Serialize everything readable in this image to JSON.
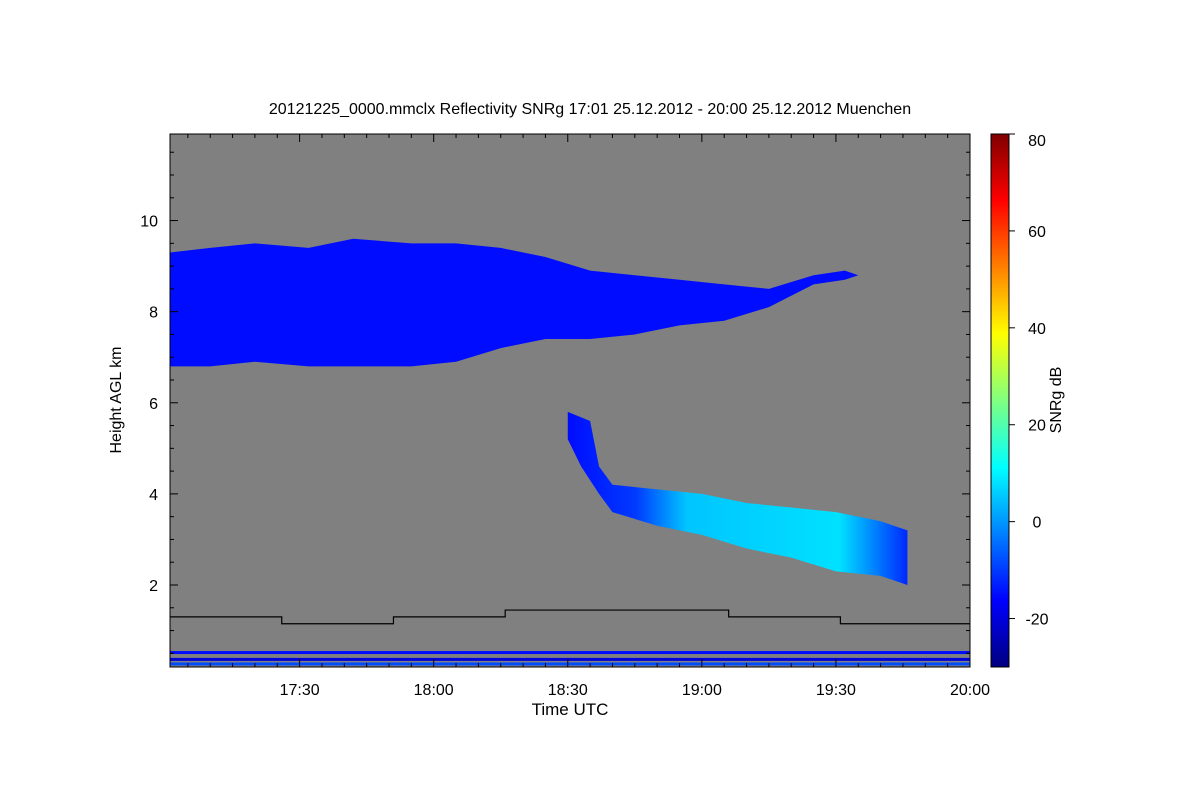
{
  "chart_data": {
    "type": "heatmap",
    "title": "20121225_0000.mmclx Reflectivity SNRg   17:01 25.12.2012 - 20:00 25.12.2012 Muenchen",
    "xlabel": "Time UTC",
    "ylabel": "Height AGL km",
    "colorbar_label": "SNRg dB",
    "x_unit": "minutes of day (UTC)",
    "xlim": [
      1021,
      1200
    ],
    "ylim": [
      0.2,
      11.9
    ],
    "x_ticks": [
      {
        "value": 1050,
        "label": "17:30"
      },
      {
        "value": 1080,
        "label": "18:00"
      },
      {
        "value": 1110,
        "label": "18:30"
      },
      {
        "value": 1140,
        "label": "19:00"
      },
      {
        "value": 1170,
        "label": "19:30"
      },
      {
        "value": 1200,
        "label": "20:00"
      }
    ],
    "y_ticks": [
      {
        "value": 2,
        "label": "2"
      },
      {
        "value": 4,
        "label": "4"
      },
      {
        "value": 6,
        "label": "6"
      },
      {
        "value": 8,
        "label": "8"
      },
      {
        "value": 10,
        "label": "10"
      }
    ],
    "colorbar_range": [
      -30,
      80
    ],
    "colorbar_ticks": [
      {
        "value": -20,
        "label": "-20"
      },
      {
        "value": 0,
        "label": "0"
      },
      {
        "value": 20,
        "label": "20"
      },
      {
        "value": 40,
        "label": "40"
      },
      {
        "value": 60,
        "label": "60"
      },
      {
        "value": 80,
        "label": "80"
      }
    ],
    "colormap": [
      "#000080",
      "#0000ff",
      "#0080ff",
      "#00ffff",
      "#80ff80",
      "#ffff00",
      "#ff8000",
      "#ff0000",
      "#800000"
    ],
    "background_color": "#808080",
    "upper_cloud_layer": {
      "top_km": [
        [
          1021,
          9.3
        ],
        [
          1030,
          9.4
        ],
        [
          1040,
          9.5
        ],
        [
          1052,
          9.4
        ],
        [
          1062,
          9.6
        ],
        [
          1075,
          9.5
        ],
        [
          1085,
          9.5
        ],
        [
          1095,
          9.4
        ],
        [
          1105,
          9.2
        ],
        [
          1115,
          8.9
        ],
        [
          1125,
          8.8
        ],
        [
          1135,
          8.7
        ],
        [
          1145,
          8.6
        ],
        [
          1155,
          8.5
        ],
        [
          1165,
          8.8
        ],
        [
          1172,
          8.9
        ],
        [
          1175,
          8.8
        ]
      ],
      "base_km": [
        [
          1021,
          6.8
        ],
        [
          1030,
          6.8
        ],
        [
          1040,
          6.9
        ],
        [
          1052,
          6.8
        ],
        [
          1062,
          6.8
        ],
        [
          1075,
          6.8
        ],
        [
          1085,
          6.9
        ],
        [
          1095,
          7.2
        ],
        [
          1105,
          7.4
        ],
        [
          1115,
          7.4
        ],
        [
          1125,
          7.5
        ],
        [
          1135,
          7.7
        ],
        [
          1145,
          7.8
        ],
        [
          1155,
          8.1
        ],
        [
          1165,
          8.6
        ],
        [
          1172,
          8.7
        ],
        [
          1175,
          8.8
        ]
      ],
      "snr_db": -15
    },
    "lower_cloud_layer": {
      "top_km": [
        [
          1110,
          5.8
        ],
        [
          1115,
          5.6
        ],
        [
          1117,
          4.6
        ],
        [
          1120,
          4.2
        ],
        [
          1130,
          4.1
        ],
        [
          1140,
          4.0
        ],
        [
          1150,
          3.8
        ],
        [
          1160,
          3.7
        ],
        [
          1170,
          3.6
        ],
        [
          1180,
          3.4
        ],
        [
          1186,
          3.2
        ]
      ],
      "base_km": [
        [
          1110,
          5.2
        ],
        [
          1113,
          4.6
        ],
        [
          1117,
          4.0
        ],
        [
          1120,
          3.6
        ],
        [
          1130,
          3.3
        ],
        [
          1140,
          3.1
        ],
        [
          1150,
          2.8
        ],
        [
          1160,
          2.6
        ],
        [
          1170,
          2.3
        ],
        [
          1180,
          2.2
        ],
        [
          1186,
          2.0
        ]
      ],
      "core_snr_db": 5,
      "max_snr_db": 20
    },
    "boundary_layer_line_km": [
      [
        1021,
        1.3
      ],
      [
        1046,
        1.3
      ],
      [
        1046,
        1.15
      ],
      [
        1071,
        1.15
      ],
      [
        1071,
        1.3
      ],
      [
        1096,
        1.3
      ],
      [
        1096,
        1.45
      ],
      [
        1146,
        1.45
      ],
      [
        1146,
        1.3
      ],
      [
        1171,
        1.3
      ],
      [
        1171,
        1.15
      ],
      [
        1200,
        1.15
      ]
    ],
    "grid": false,
    "legend": "colorbar-right"
  }
}
